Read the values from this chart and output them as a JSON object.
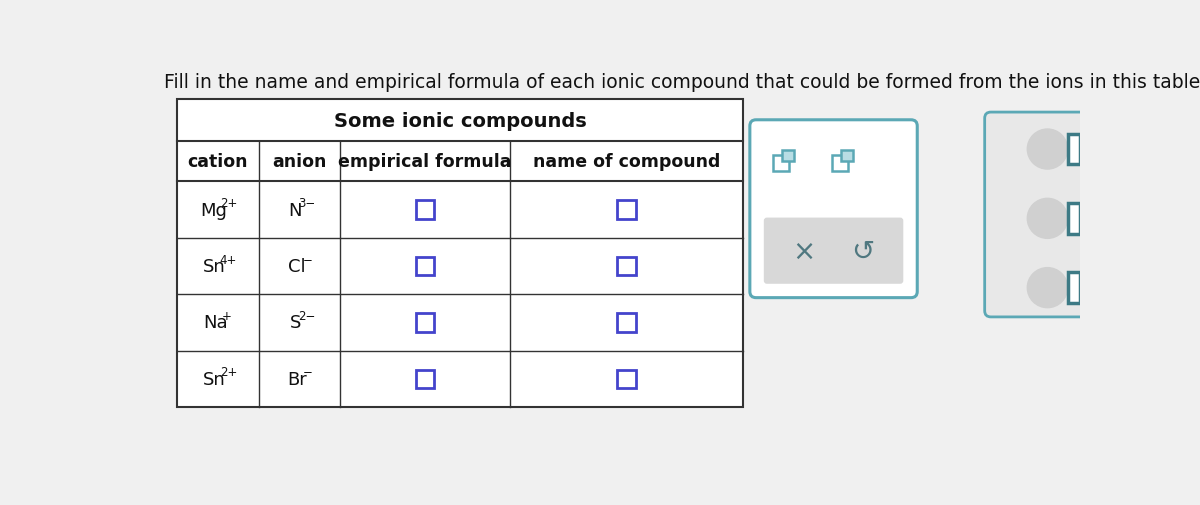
{
  "title": "Fill in the name and empirical formula of each ionic compound that could be formed from the ions in this table",
  "table_title": "Some ionic compounds",
  "headers": [
    "cation",
    "anion",
    "empirical formula",
    "name of compound"
  ],
  "row_data": [
    [
      "Mg",
      "2+",
      "N",
      "3−"
    ],
    [
      "Sn",
      "4+",
      "Cl",
      "−"
    ],
    [
      "Na",
      "+",
      "S",
      "2−"
    ],
    [
      "Sn",
      "2+",
      "Br",
      "−"
    ]
  ],
  "bg_color": "#f0f0f0",
  "table_bg": "#ffffff",
  "table_border": "#333333",
  "input_box_color": "#4444cc",
  "title_font_size": 13.5,
  "header_font_size": 12.5,
  "cell_font_size": 13,
  "popup_bg": "#ffffff",
  "popup_border": "#5ba8b5",
  "popup_btn_bg": "#d8d8d8",
  "icon_color": "#5ba8b5",
  "icon_fill": "#b8dde4",
  "btn_text_color": "#507880",
  "circle_color": "#d0d0d0",
  "bracket_color": "#3d7a85"
}
